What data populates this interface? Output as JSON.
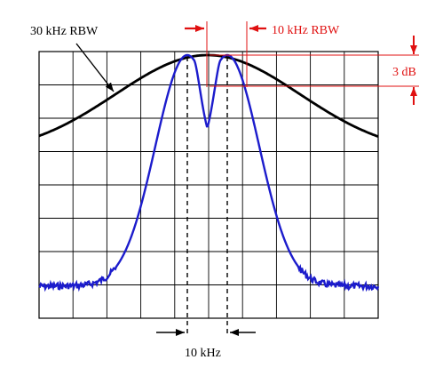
{
  "labels": {
    "rbw_30": "30 kHz RBW",
    "rbw_10": "10 kHz RBW",
    "db_3": "3 dB",
    "khz_10": "10 kHz"
  },
  "colors": {
    "grid": "#000000",
    "rbw_30_trace": "#000000",
    "rbw_10_trace": "#1c1ccc",
    "annotation": "#e01010",
    "marker": "#000000"
  },
  "icons": {
    "arrows": [
      "arrow-right-icon",
      "arrow-left-icon",
      "arrow-down-icon",
      "arrow-up-icon"
    ]
  }
}
